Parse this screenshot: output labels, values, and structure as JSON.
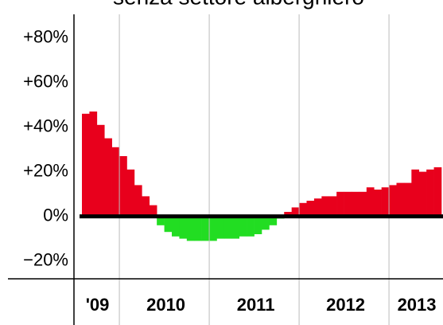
{
  "chart_data": {
    "type": "bar",
    "title": "senza settore alberghiero",
    "groups": [
      {
        "label": "'09",
        "values": [
          46,
          47,
          41,
          35,
          31
        ]
      },
      {
        "label": "2010",
        "values": [
          27,
          21,
          14,
          9,
          5,
          -4,
          -7,
          -9,
          -10,
          -11,
          -11,
          -11
        ]
      },
      {
        "label": "2011",
        "values": [
          -11,
          -10,
          -10,
          -10,
          -9,
          -9,
          -8,
          -6,
          -4,
          -1,
          2,
          4
        ]
      },
      {
        "label": "2012",
        "values": [
          6,
          7,
          8,
          9,
          9,
          11,
          11,
          11,
          11,
          13,
          12,
          13
        ]
      },
      {
        "label": "2013",
        "values": [
          14,
          15,
          15,
          21,
          20,
          21,
          22
        ]
      }
    ],
    "positive_color": "#e8001c",
    "negative_color": "#22dd22",
    "ylim": [
      -28,
      97
    ],
    "yticks": [
      {
        "value": -20,
        "label": "−20%"
      },
      {
        "value": 0,
        "label": "0%"
      },
      {
        "value": 20,
        "label": "+20%"
      },
      {
        "value": 40,
        "label": "+40%"
      },
      {
        "value": 60,
        "label": "+60%"
      },
      {
        "value": 80,
        "label": "+80%"
      }
    ]
  }
}
